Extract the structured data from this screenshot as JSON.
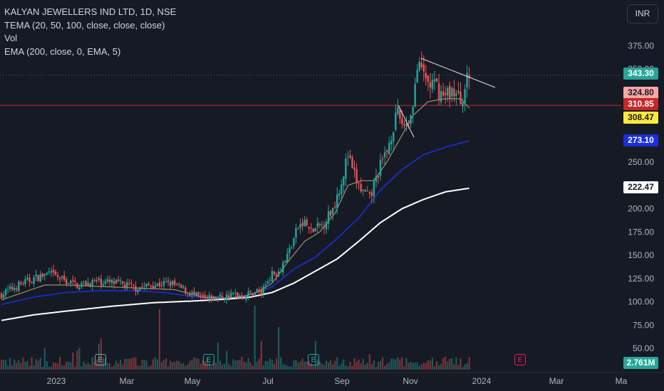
{
  "legend": {
    "title": "KALYAN JEWELLERS IND LTD, 1D, NSE",
    "ind1": "TEMA (20, 50, 100, close, close, close)",
    "ind2": "Vol",
    "ind3": "EMA (200, close, 0, EMA, 5)"
  },
  "currency_button": "INR",
  "colors": {
    "background": "#161a25",
    "up": "#26a69a",
    "down": "#ef5350",
    "tema20": "#a38f6e",
    "tema50": "#1a2fd6",
    "ema200": "#ffffff",
    "hline": "#c62828"
  },
  "price_tags": [
    {
      "name": "last-price",
      "text": "343.30",
      "bg": "#26a69a",
      "fg": "#ffffff"
    },
    {
      "name": "hline-high",
      "text": "324.80",
      "bg": "#f7a7a3",
      "fg": "#161a25"
    },
    {
      "name": "hline-price",
      "text": "310.85",
      "bg": "#c62828",
      "fg": "#ffffff"
    },
    {
      "name": "tema20-value",
      "text": "308.47",
      "bg": "#ffeb3b",
      "fg": "#161a25"
    },
    {
      "name": "tema50-value",
      "text": "273.10",
      "bg": "#1a2fd6",
      "fg": "#ffffff"
    },
    {
      "name": "ema200-value",
      "text": "222.47",
      "bg": "#ffffff",
      "fg": "#161a25"
    },
    {
      "name": "volume-value",
      "text": "2.761M",
      "bg": "#26a69a",
      "fg": "#ffffff"
    }
  ],
  "badges": {
    "earnings": "E"
  },
  "chart_data": {
    "type": "candlestick",
    "symbol": "KALYAN JEWELLERS IND LTD",
    "interval": "1D",
    "exchange": "NSE",
    "y_ticks": [
      "375.00",
      "350.00",
      "325.00",
      "300.00",
      "275.00",
      "250.00",
      "225.00",
      "200.00",
      "175.00",
      "150.00",
      "125.00",
      "100.00",
      "75.00",
      "50.00"
    ],
    "x_ticks": [
      "2023",
      "Mar",
      "May",
      "Jul",
      "Sep",
      "Nov",
      "2024",
      "Mar",
      "Ma"
    ],
    "ylim": [
      40,
      385
    ],
    "last_close": 343.3,
    "horizontal_line": 310.85,
    "tema20_last": 308.47,
    "tema50_last": 273.1,
    "ema200_last": 222.47,
    "volume_last": "2.761M",
    "price_anchors": [
      [
        0,
        108
      ],
      [
        8,
        118
      ],
      [
        15,
        125
      ],
      [
        22,
        130
      ],
      [
        28,
        124
      ],
      [
        35,
        118
      ],
      [
        45,
        122
      ],
      [
        55,
        119
      ],
      [
        62,
        115
      ],
      [
        70,
        118
      ],
      [
        78,
        120
      ],
      [
        85,
        112
      ],
      [
        90,
        106
      ],
      [
        95,
        103
      ],
      [
        102,
        105
      ],
      [
        108,
        108
      ],
      [
        112,
        106
      ],
      [
        118,
        112
      ],
      [
        120,
        110
      ],
      [
        124,
        128
      ],
      [
        128,
        133
      ],
      [
        132,
        150
      ],
      [
        137,
        180
      ],
      [
        140,
        185
      ],
      [
        143,
        175
      ],
      [
        148,
        182
      ],
      [
        153,
        200
      ],
      [
        157,
        230
      ],
      [
        160,
        258
      ],
      [
        162,
        240
      ],
      [
        166,
        220
      ],
      [
        170,
        210
      ],
      [
        174,
        240
      ],
      [
        178,
        262
      ],
      [
        181,
        290
      ],
      [
        183,
        300
      ],
      [
        186,
        290
      ],
      [
        189,
        300
      ],
      [
        192,
        350
      ],
      [
        195,
        345
      ],
      [
        197,
        335
      ],
      [
        201,
        330
      ],
      [
        204,
        320
      ],
      [
        208,
        328
      ],
      [
        212,
        315
      ],
      [
        214,
        330
      ],
      [
        216,
        343
      ]
    ],
    "tema20_anchors": [
      [
        0,
        102
      ],
      [
        10,
        110
      ],
      [
        20,
        118
      ],
      [
        30,
        118
      ],
      [
        40,
        117
      ],
      [
        50,
        116
      ],
      [
        60,
        115
      ],
      [
        70,
        114
      ],
      [
        80,
        113
      ],
      [
        88,
        108
      ],
      [
        95,
        104
      ],
      [
        105,
        104
      ],
      [
        112,
        106
      ],
      [
        118,
        110
      ],
      [
        125,
        120
      ],
      [
        133,
        145
      ],
      [
        140,
        165
      ],
      [
        147,
        175
      ],
      [
        154,
        195
      ],
      [
        160,
        225
      ],
      [
        166,
        230
      ],
      [
        172,
        230
      ],
      [
        178,
        250
      ],
      [
        184,
        275
      ],
      [
        190,
        300
      ],
      [
        197,
        315
      ],
      [
        205,
        318
      ],
      [
        212,
        318
      ],
      [
        216,
        308
      ]
    ],
    "tema50_anchors": [
      [
        0,
        97
      ],
      [
        15,
        105
      ],
      [
        30,
        110
      ],
      [
        45,
        112
      ],
      [
        60,
        112
      ],
      [
        75,
        110
      ],
      [
        90,
        105
      ],
      [
        105,
        104
      ],
      [
        115,
        108
      ],
      [
        125,
        116
      ],
      [
        135,
        135
      ],
      [
        145,
        148
      ],
      [
        155,
        168
      ],
      [
        165,
        190
      ],
      [
        175,
        220
      ],
      [
        185,
        242
      ],
      [
        195,
        258
      ],
      [
        205,
        266
      ],
      [
        216,
        273
      ]
    ],
    "ema200_anchors": [
      [
        0,
        80
      ],
      [
        15,
        86
      ],
      [
        30,
        90
      ],
      [
        50,
        95
      ],
      [
        70,
        99
      ],
      [
        90,
        101
      ],
      [
        105,
        103
      ],
      [
        115,
        105
      ],
      [
        125,
        110
      ],
      [
        135,
        120
      ],
      [
        145,
        133
      ],
      [
        155,
        146
      ],
      [
        165,
        165
      ],
      [
        175,
        185
      ],
      [
        185,
        200
      ],
      [
        195,
        210
      ],
      [
        205,
        218
      ],
      [
        216,
        222
      ]
    ]
  }
}
